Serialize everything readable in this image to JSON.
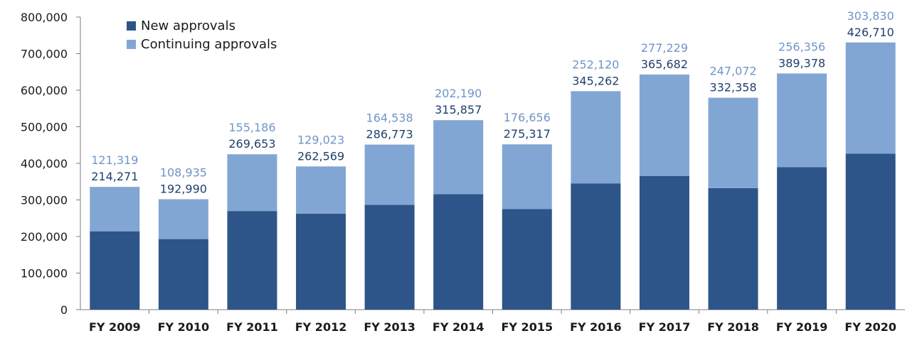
{
  "chart_data": {
    "type": "bar",
    "stacked": true,
    "title": "",
    "xlabel": "",
    "ylabel": "",
    "ylim": [
      0,
      800000
    ],
    "y_ticks": [
      0,
      100000,
      200000,
      300000,
      400000,
      500000,
      600000,
      700000,
      800000
    ],
    "y_tick_labels": [
      "0",
      "100,000",
      "200,000",
      "300,000",
      "400,000",
      "500,000",
      "600,000",
      "700,000",
      "800,000"
    ],
    "grid": false,
    "legend_position": "top-left",
    "categories": [
      "FY 2009",
      "FY 2010",
      "FY 2011",
      "FY 2012",
      "FY 2013",
      "FY 2014",
      "FY 2015",
      "FY 2016",
      "FY 2017",
      "FY 2018",
      "FY 2019",
      "FY 2020"
    ],
    "series": [
      {
        "name": "New approvals",
        "color": "#2e5589",
        "values": [
          214271,
          192990,
          269653,
          262569,
          286773,
          315857,
          275317,
          345262,
          365682,
          332358,
          389378,
          426710
        ],
        "labels": [
          "214,271",
          "192,990",
          "269,653",
          "262,569",
          "286,773",
          "315,857",
          "275,317",
          "345,262",
          "365,682",
          "332,358",
          "389,378",
          "426,710"
        ]
      },
      {
        "name": "Continuing approvals",
        "color": "#82a6d4",
        "values": [
          121319,
          108935,
          155186,
          129023,
          164538,
          202190,
          176656,
          252120,
          277229,
          247072,
          256356,
          303830
        ],
        "labels": [
          "121,319",
          "108,935",
          "155,186",
          "129,023",
          "164,538",
          "202,190",
          "176,656",
          "252,120",
          "277,229",
          "247,072",
          "256,356",
          "303,830"
        ]
      }
    ]
  }
}
